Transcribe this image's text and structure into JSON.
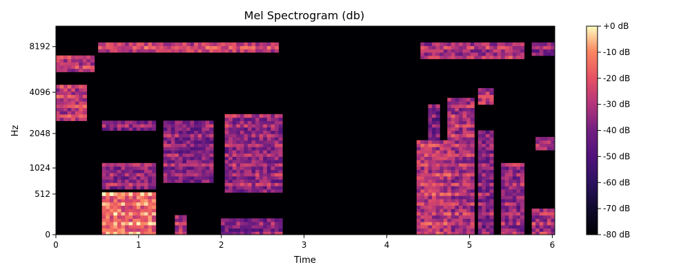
{
  "chart_data": {
    "type": "heatmap",
    "title": "Mel Spectrogram (db)",
    "xlabel": "Time",
    "ylabel": "Hz",
    "x_ticks": [
      0,
      1,
      2,
      3,
      4,
      5,
      6
    ],
    "xlim": [
      0,
      6.03
    ],
    "y_scale": "mel",
    "y_ticks": [
      0,
      512,
      1024,
      2048,
      4096,
      8192
    ],
    "colormap": "magma",
    "colorbar": {
      "label_suffix": " dB",
      "ticks": [
        0,
        -10,
        -20,
        -30,
        -40,
        -50,
        -60,
        -70,
        -80
      ],
      "tick_labels": [
        "+0 dB",
        "-10 dB",
        "-20 dB",
        "-30 dB",
        "-40 dB",
        "-50 dB",
        "-60 dB",
        "-70 dB",
        "-80 dB"
      ],
      "range": [
        -80,
        0
      ]
    },
    "regions": [
      {
        "t": [
          0.0,
          0.45
        ],
        "band": [
          0.78,
          0.86
        ],
        "db": -32
      },
      {
        "t": [
          0.0,
          0.35
        ],
        "band": [
          0.55,
          0.72
        ],
        "db": -30
      },
      {
        "t": [
          0.5,
          2.7
        ],
        "band": [
          0.88,
          0.92
        ],
        "db": -28
      },
      {
        "t": [
          0.55,
          1.2
        ],
        "band": [
          0.0,
          0.2
        ],
        "db": -18
      },
      {
        "t": [
          0.55,
          1.2
        ],
        "band": [
          0.22,
          0.35
        ],
        "db": -38
      },
      {
        "t": [
          0.55,
          1.2
        ],
        "band": [
          0.5,
          0.55
        ],
        "db": -42
      },
      {
        "t": [
          1.3,
          1.9
        ],
        "band": [
          0.25,
          0.55
        ],
        "db": -40
      },
      {
        "t": [
          1.45,
          1.6
        ],
        "band": [
          0.0,
          0.1
        ],
        "db": -30
      },
      {
        "t": [
          2.05,
          2.75
        ],
        "band": [
          0.2,
          0.58
        ],
        "db": -38
      },
      {
        "t": [
          2.0,
          2.75
        ],
        "band": [
          0.0,
          0.08
        ],
        "db": -42
      },
      {
        "t": [
          4.35,
          4.8
        ],
        "band": [
          0.0,
          0.45
        ],
        "db": -30
      },
      {
        "t": [
          4.5,
          4.65
        ],
        "band": [
          0.45,
          0.62
        ],
        "db": -45
      },
      {
        "t": [
          4.75,
          5.05
        ],
        "band": [
          0.0,
          0.65
        ],
        "db": -34
      },
      {
        "t": [
          5.1,
          5.3
        ],
        "band": [
          0.62,
          0.7
        ],
        "db": -30
      },
      {
        "t": [
          5.1,
          5.3
        ],
        "band": [
          0.0,
          0.5
        ],
        "db": -40
      },
      {
        "t": [
          5.4,
          5.65
        ],
        "band": [
          0.0,
          0.35
        ],
        "db": -38
      },
      {
        "t": [
          4.4,
          5.65
        ],
        "band": [
          0.84,
          0.92
        ],
        "db": -34
      },
      {
        "t": [
          5.75,
          6.03
        ],
        "band": [
          0.0,
          0.12
        ],
        "db": -35
      },
      {
        "t": [
          5.8,
          6.03
        ],
        "band": [
          0.4,
          0.47
        ],
        "db": -35
      },
      {
        "t": [
          5.75,
          6.03
        ],
        "band": [
          0.86,
          0.92
        ],
        "db": -40
      }
    ]
  }
}
